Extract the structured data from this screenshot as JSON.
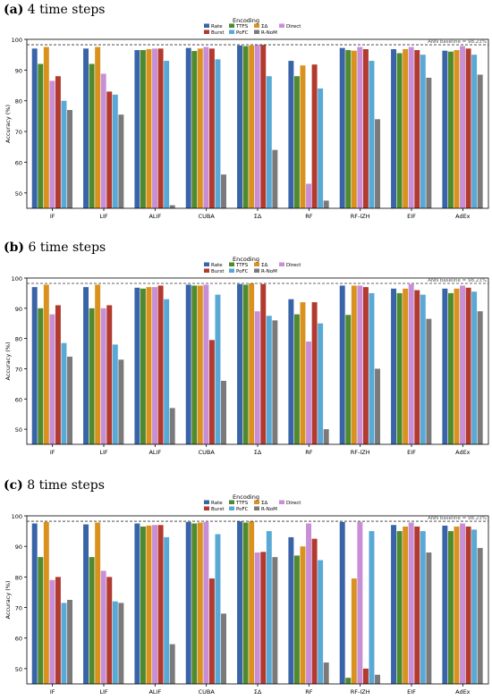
{
  "panels": [
    {
      "label": "(a)",
      "title": "4 time steps"
    },
    {
      "label": "(b)",
      "title": "6 time steps"
    },
    {
      "label": "(c)",
      "title": "8 time steps"
    }
  ],
  "colors": {
    "Rate": "#3a64a8",
    "TTFS": "#4f8a2e",
    "ΣΔ": "#d9921e",
    "Direct": "#c98fd6",
    "Burst": "#b23a2e",
    "PoFC": "#58a9d6",
    "R-NoM": "#7a7a7a"
  },
  "chart_data": [
    {
      "type": "bar",
      "title": "",
      "xlabel": "",
      "ylabel": "Accuracy (%)",
      "ylim": [
        45,
        100
      ],
      "yticks": [
        50,
        60,
        70,
        80,
        90,
        100
      ],
      "legend_title": "Encoding",
      "legend_placement": "top-center",
      "baseline": {
        "label": "ANN baseline = 98.23%",
        "value": 98.23
      },
      "categories": [
        "IF",
        "LIF",
        "ALIF",
        "CUBA",
        "ΣΔ",
        "RF",
        "RF-IZH",
        "EIF",
        "AdEx"
      ],
      "series": [
        {
          "name": "Rate",
          "values": [
            97.0,
            97.0,
            96.5,
            97.2,
            98.0,
            93.0,
            97.2,
            96.8,
            96.3
          ]
        },
        {
          "name": "TTFS",
          "values": [
            92.0,
            92.0,
            96.5,
            96.2,
            97.8,
            88.0,
            96.5,
            95.5,
            96.0
          ]
        },
        {
          "name": "ΣΔ",
          "values": [
            97.5,
            97.5,
            96.8,
            97.0,
            98.0,
            91.5,
            96.3,
            96.8,
            96.5
          ]
        },
        {
          "name": "Direct",
          "values": [
            86.5,
            88.8,
            97.0,
            97.5,
            98.2,
            53.0,
            97.5,
            97.5,
            97.8
          ]
        },
        {
          "name": "Burst",
          "values": [
            88.0,
            83.0,
            97.0,
            97.0,
            98.2,
            91.8,
            96.8,
            96.5,
            97.0
          ]
        },
        {
          "name": "PoFC",
          "values": [
            80.0,
            82.0,
            93.0,
            93.5,
            88.0,
            84.0,
            93.0,
            95.0,
            95.0
          ]
        },
        {
          "name": "R-NoM",
          "values": [
            77.0,
            75.5,
            46.0,
            56.0,
            64.0,
            47.5,
            74.0,
            87.5,
            88.5
          ]
        }
      ]
    },
    {
      "type": "bar",
      "title": "",
      "xlabel": "",
      "ylabel": "Accuracy (%)",
      "ylim": [
        45,
        100
      ],
      "yticks": [
        50,
        60,
        70,
        80,
        90,
        100
      ],
      "legend_title": "Encoding",
      "legend_placement": "top-center",
      "baseline": {
        "label": "ANN baseline = 98.23%",
        "value": 98.23
      },
      "categories": [
        "IF",
        "LIF",
        "ALIF",
        "CUBA",
        "ΣΔ",
        "RF",
        "RF-IZH",
        "EIF",
        "AdEx"
      ],
      "series": [
        {
          "name": "Rate",
          "values": [
            97.0,
            97.0,
            96.8,
            97.8,
            98.0,
            93.0,
            97.5,
            96.5,
            96.5
          ]
        },
        {
          "name": "TTFS",
          "values": [
            90.0,
            90.0,
            96.5,
            97.5,
            97.8,
            88.0,
            87.8,
            95.0,
            95.0
          ]
        },
        {
          "name": "ΣΔ",
          "values": [
            97.8,
            97.8,
            97.0,
            97.5,
            98.2,
            92.0,
            97.5,
            96.5,
            96.5
          ]
        },
        {
          "name": "Direct",
          "values": [
            88.0,
            90.0,
            97.0,
            97.8,
            89.0,
            79.0,
            97.5,
            98.0,
            97.5
          ]
        },
        {
          "name": "Burst",
          "values": [
            91.0,
            91.0,
            97.5,
            79.5,
            98.0,
            92.0,
            97.0,
            96.0,
            96.8
          ]
        },
        {
          "name": "PoFC",
          "values": [
            78.5,
            78.0,
            93.0,
            94.5,
            87.5,
            85.0,
            95.0,
            94.5,
            95.5
          ]
        },
        {
          "name": "R-NoM",
          "values": [
            74.0,
            73.0,
            57.0,
            66.0,
            86.0,
            50.0,
            70.0,
            86.5,
            89.0
          ]
        }
      ]
    },
    {
      "type": "bar",
      "title": "",
      "xlabel": "",
      "ylabel": "Accuracy (%)",
      "ylim": [
        45,
        100
      ],
      "yticks": [
        50,
        60,
        70,
        80,
        90,
        100
      ],
      "legend_title": "Encoding",
      "legend_placement": "top-center",
      "baseline": {
        "label": "ANN baseline = 98.23%",
        "value": 98.23
      },
      "categories": [
        "IF",
        "LIF",
        "ALIF",
        "CUBA",
        "ΣΔ",
        "RF",
        "RF-IZH",
        "EIF",
        "AdEx"
      ],
      "series": [
        {
          "name": "Rate",
          "values": [
            97.5,
            97.2,
            97.5,
            98.0,
            98.2,
            93.0,
            98.0,
            97.0,
            96.8
          ]
        },
        {
          "name": "TTFS",
          "values": [
            86.5,
            86.5,
            96.5,
            97.5,
            97.8,
            87.0,
            47.0,
            95.0,
            95.0
          ]
        },
        {
          "name": "ΣΔ",
          "values": [
            98.0,
            97.8,
            96.8,
            97.8,
            98.2,
            90.0,
            79.5,
            96.5,
            96.5
          ]
        },
        {
          "name": "Direct",
          "values": [
            79.0,
            82.0,
            97.0,
            98.0,
            88.0,
            97.5,
            98.0,
            97.8,
            97.5
          ]
        },
        {
          "name": "Burst",
          "values": [
            80.0,
            80.0,
            97.0,
            79.5,
            88.2,
            92.5,
            50.0,
            96.5,
            96.5
          ]
        },
        {
          "name": "PoFC",
          "values": [
            71.5,
            72.0,
            93.0,
            94.0,
            95.0,
            85.5,
            95.0,
            95.0,
            95.5
          ]
        },
        {
          "name": "R-NoM",
          "values": [
            72.5,
            71.5,
            58.0,
            68.0,
            86.5,
            52.0,
            48.0,
            88.0,
            89.5
          ]
        }
      ]
    }
  ]
}
